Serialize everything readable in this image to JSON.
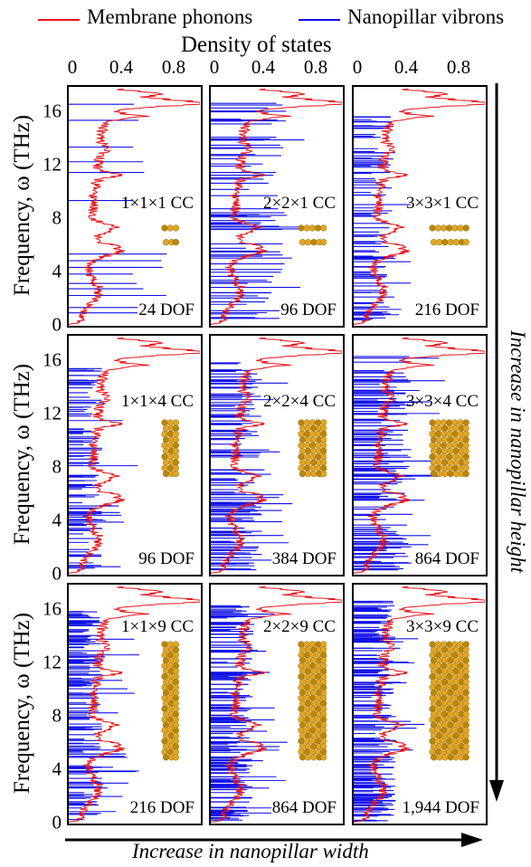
{
  "legend": [
    {
      "name": "Membrane phonons",
      "color": "#e8141b"
    },
    {
      "name": "Nanopillar vibrons",
      "color": "#1010e6"
    }
  ],
  "top_axis_title": "Density of states",
  "top_ticks": [
    "0",
    "0.4",
    "0.8"
  ],
  "left_axis_title": "Frequency, ω (THz)",
  "left_ticks": [
    "0",
    "4",
    "8",
    "12",
    "16"
  ],
  "width_arrow_label": "Increase in nanopillar width",
  "height_arrow_label": "Increase in nanopillar height",
  "chart_data": [
    {
      "type": "line",
      "panel": "1×1×1 CC",
      "dof": "24 DOF",
      "xlim": [
        0,
        1.0
      ],
      "ylim": [
        0,
        17.8
      ],
      "series": [
        {
          "name": "Membrane phonons",
          "x_is": "density",
          "y_is": "frequency_THz"
        },
        {
          "name": "Nanopillar vibrons",
          "modes_THz": [
            0.9,
            1.3,
            2.2,
            2.7,
            3.1,
            3.8,
            4.3,
            4.8,
            5.3,
            9.3,
            11.4,
            12.2,
            13.3,
            15.3,
            16.5
          ],
          "density": 0.75
        }
      ]
    },
    {
      "type": "line",
      "panel": "2×2×1 CC",
      "dof": "96 DOF",
      "xlim": [
        0,
        1.0
      ],
      "ylim": [
        0,
        17.8
      ],
      "series": [
        {
          "name": "Membrane phonons"
        },
        {
          "name": "Nanopillar vibrons",
          "band_THz": [
            0.4,
            16.6
          ],
          "density": 0.45
        }
      ]
    },
    {
      "type": "line",
      "panel": "3×3×1 CC",
      "dof": "216 DOF",
      "xlim": [
        0,
        1.0
      ],
      "ylim": [
        0,
        17.8
      ],
      "series": [
        {
          "name": "Membrane phonons"
        },
        {
          "name": "Nanopillar vibrons",
          "band_THz": [
            0.2,
            16.6
          ],
          "density": 0.25
        }
      ]
    },
    {
      "type": "line",
      "panel": "1×1×4 CC",
      "dof": "96 DOF",
      "xlim": [
        0,
        1.0
      ],
      "ylim": [
        0,
        17.8
      ],
      "series": [
        {
          "name": "Membrane phonons"
        },
        {
          "name": "Nanopillar vibrons",
          "band_THz": [
            0.1,
            15.8
          ],
          "density": 0.2
        }
      ]
    },
    {
      "type": "line",
      "panel": "2×2×4 CC",
      "dof": "384 DOF",
      "xlim": [
        0,
        1.0
      ],
      "ylim": [
        0,
        17.8
      ],
      "series": [
        {
          "name": "Membrane phonons"
        },
        {
          "name": "Nanopillar vibrons",
          "band_THz": [
            0.1,
            16.0
          ],
          "density": 0.3
        }
      ]
    },
    {
      "type": "line",
      "panel": "3×3×4 CC",
      "dof": "864 DOF",
      "xlim": [
        0,
        1.0
      ],
      "ylim": [
        0,
        17.8
      ],
      "series": [
        {
          "name": "Membrane phonons"
        },
        {
          "name": "Nanopillar vibrons",
          "band_THz": [
            0.1,
            16.3
          ],
          "density": 0.35
        }
      ]
    },
    {
      "type": "line",
      "panel": "1×1×9 CC",
      "dof": "216 DOF",
      "xlim": [
        0,
        1.0
      ],
      "ylim": [
        0,
        17.8
      ],
      "series": [
        {
          "name": "Membrane phonons"
        },
        {
          "name": "Nanopillar vibrons",
          "band_THz": [
            0.1,
            15.8
          ],
          "density": 0.2
        }
      ]
    },
    {
      "type": "line",
      "panel": "2×2×9 CC",
      "dof": "864 DOF",
      "xlim": [
        0,
        1.0
      ],
      "ylim": [
        0,
        17.8
      ],
      "series": [
        {
          "name": "Membrane phonons"
        },
        {
          "name": "Nanopillar vibrons",
          "band_THz": [
            0.1,
            16.3
          ],
          "density": 0.25
        }
      ]
    },
    {
      "type": "line",
      "panel": "3×3×9 CC",
      "dof": "1,944 DOF",
      "xlim": [
        0,
        1.0
      ],
      "ylim": [
        0,
        17.8
      ],
      "series": [
        {
          "name": "Membrane phonons"
        },
        {
          "name": "Nanopillar vibrons",
          "band_THz": [
            0.1,
            16.6
          ],
          "density": 0.25
        }
      ]
    }
  ]
}
